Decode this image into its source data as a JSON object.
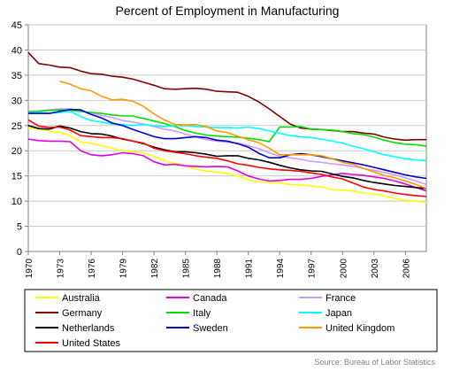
{
  "chart_data": {
    "type": "line",
    "title": "Percent of Employment in Manufacturing",
    "xlabel": "",
    "ylabel": "",
    "ylim": [
      0,
      45
    ],
    "yticks": [
      0,
      5,
      10,
      15,
      20,
      25,
      30,
      35,
      40,
      45
    ],
    "xlim": [
      1970,
      2008
    ],
    "xticks": [
      "1970",
      "1973",
      "1976",
      "1979",
      "1982",
      "1985",
      "1988",
      "1991",
      "1994",
      "1997",
      "2000",
      "2003",
      "2006"
    ],
    "grid": "horizontal",
    "legend": "bottom",
    "source": "Source: Bureau of Labor Statistics",
    "x": [
      1970,
      1971,
      1972,
      1973,
      1974,
      1975,
      1976,
      1977,
      1978,
      1979,
      1980,
      1981,
      1982,
      1983,
      1984,
      1985,
      1986,
      1987,
      1988,
      1989,
      1990,
      1991,
      1992,
      1993,
      1994,
      1995,
      1996,
      1997,
      1998,
      1999,
      2000,
      2001,
      2002,
      2003,
      2004,
      2005,
      2006,
      2007,
      2008
    ],
    "series": [
      {
        "name": "Australia",
        "color": "#ffff00",
        "values": [
          24.5,
          24.3,
          23.9,
          23.6,
          23.0,
          21.7,
          21.5,
          21.0,
          20.5,
          20.0,
          19.9,
          19.5,
          18.9,
          18.0,
          17.5,
          17.0,
          16.4,
          15.9,
          15.8,
          15.5,
          15.0,
          14.2,
          13.8,
          13.7,
          13.6,
          13.3,
          13.2,
          13.0,
          12.8,
          12.3,
          12.2,
          12.0,
          11.6,
          11.4,
          11.0,
          10.5,
          10.2,
          10.0,
          9.7
        ]
      },
      {
        "name": "Canada",
        "color": "#e000e0",
        "values": [
          22.3,
          22.0,
          21.9,
          21.9,
          21.8,
          20.0,
          19.2,
          19.0,
          19.2,
          19.6,
          19.4,
          19.0,
          17.8,
          17.2,
          17.3,
          17.0,
          16.9,
          16.8,
          16.9,
          16.8,
          16.0,
          15.0,
          14.4,
          14.0,
          14.1,
          14.3,
          14.3,
          14.5,
          14.9,
          15.2,
          15.5,
          15.3,
          15.1,
          14.8,
          14.5,
          14.0,
          13.4,
          12.7,
          12.0
        ]
      },
      {
        "name": "France",
        "color": "#cc99ff",
        "values": [
          27.8,
          27.9,
          28.1,
          28.3,
          28.3,
          27.9,
          27.5,
          27.0,
          26.6,
          26.0,
          25.7,
          25.3,
          24.8,
          24.3,
          23.9,
          23.3,
          22.7,
          22.2,
          21.9,
          21.7,
          21.5,
          21.0,
          20.4,
          19.6,
          18.9,
          18.6,
          18.3,
          17.9,
          17.7,
          17.4,
          17.2,
          16.9,
          16.5,
          16.1,
          15.7,
          15.2,
          14.6,
          14.0,
          13.3
        ]
      },
      {
        "name": "Germany",
        "color": "#800000",
        "values": [
          39.5,
          37.3,
          37.0,
          36.6,
          36.5,
          35.8,
          35.3,
          35.2,
          34.8,
          34.6,
          34.2,
          33.6,
          33.0,
          32.3,
          32.2,
          32.3,
          32.4,
          32.2,
          31.8,
          31.7,
          31.6,
          30.8,
          29.7,
          28.3,
          26.8,
          25.3,
          24.5,
          24.3,
          24.2,
          24.0,
          23.8,
          23.8,
          23.5,
          23.3,
          22.7,
          22.3,
          22.1,
          22.2,
          22.2
        ]
      },
      {
        "name": "Italy",
        "color": "#00e000",
        "values": [
          27.7,
          27.8,
          28.0,
          28.1,
          28.0,
          27.8,
          27.6,
          27.4,
          27.1,
          26.9,
          26.9,
          26.4,
          25.9,
          25.4,
          24.8,
          24.0,
          23.5,
          23.1,
          22.9,
          22.8,
          22.7,
          22.5,
          22.2,
          21.8,
          24.7,
          24.7,
          24.8,
          24.3,
          24.2,
          24.1,
          23.8,
          23.4,
          23.2,
          22.7,
          22.1,
          21.6,
          21.3,
          21.2,
          20.9
        ]
      },
      {
        "name": "Japan",
        "color": "#00ffff",
        "values": [
          27.5,
          27.6,
          27.4,
          27.6,
          27.8,
          26.8,
          26.0,
          25.7,
          25.3,
          25.2,
          25.0,
          25.2,
          25.0,
          24.8,
          25.0,
          25.0,
          24.8,
          24.7,
          24.6,
          24.6,
          24.5,
          24.7,
          24.4,
          23.9,
          23.5,
          23.0,
          22.8,
          22.6,
          22.3,
          21.9,
          21.5,
          20.9,
          20.4,
          19.8,
          19.2,
          18.8,
          18.4,
          18.2,
          18.0
        ]
      },
      {
        "name": "Netherlands",
        "color": "#000000",
        "values": [
          25.0,
          24.4,
          24.3,
          24.9,
          24.5,
          23.8,
          23.4,
          23.3,
          22.9,
          22.3,
          21.9,
          21.4,
          20.7,
          20.2,
          19.8,
          19.8,
          19.6,
          19.3,
          18.9,
          19.0,
          19.0,
          18.5,
          18.2,
          17.7,
          17.1,
          16.6,
          16.2,
          16.0,
          15.9,
          15.4,
          14.9,
          14.6,
          14.1,
          13.7,
          13.4,
          13.1,
          12.9,
          12.7,
          12.5
        ]
      },
      {
        "name": "Sweden",
        "color": "#0000cc",
        "values": [
          27.4,
          27.4,
          27.4,
          27.8,
          28.2,
          28.1,
          27.2,
          26.5,
          25.5,
          25.0,
          24.2,
          23.5,
          22.8,
          22.4,
          22.4,
          22.6,
          22.8,
          22.6,
          22.1,
          21.9,
          21.4,
          20.7,
          19.5,
          18.6,
          18.6,
          19.2,
          19.4,
          19.2,
          18.8,
          18.4,
          18.0,
          17.6,
          17.2,
          16.7,
          16.2,
          15.7,
          15.2,
          14.8,
          14.5
        ]
      },
      {
        "name": "United Kingdom",
        "color": "#ff9900",
        "values": [
          null,
          null,
          null,
          33.8,
          33.2,
          32.3,
          31.9,
          30.8,
          30.1,
          30.2,
          29.8,
          28.8,
          27.3,
          26.1,
          25.2,
          25.1,
          25.2,
          24.8,
          23.9,
          23.6,
          22.9,
          22.2,
          21.6,
          20.5,
          19.2,
          19.2,
          19.2,
          19.2,
          19.0,
          18.4,
          17.7,
          17.3,
          16.5,
          15.8,
          15.1,
          14.6,
          14.0,
          13.3,
          12.5
        ]
      },
      {
        "name": "United States",
        "color": "#ff0000",
        "values": [
          26.1,
          24.9,
          24.6,
          24.7,
          24.1,
          23.0,
          22.8,
          22.6,
          22.6,
          22.4,
          21.9,
          21.5,
          20.5,
          20.0,
          19.7,
          19.4,
          19.0,
          18.7,
          18.5,
          18.0,
          17.4,
          17.1,
          16.7,
          16.4,
          16.2,
          16.1,
          15.9,
          15.6,
          15.3,
          14.8,
          14.4,
          13.6,
          12.8,
          12.3,
          12.0,
          11.6,
          11.3,
          11.1,
          10.9
        ]
      }
    ]
  }
}
